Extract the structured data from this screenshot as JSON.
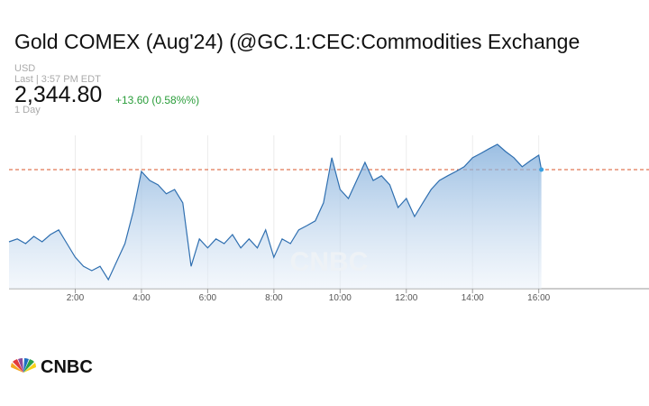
{
  "title": "Gold COMEX (Aug'24) (@GC.1:CEC:Commodities Exchange",
  "currency": "USD",
  "last_time": "Last | 3:57 PM EDT",
  "last": {
    "value": 2344.8,
    "label": "2,344.80"
  },
  "change": "+13.60 (0.58%%)",
  "range": "1 Day",
  "logo": "CNBC",
  "chart_data": {
    "type": "area",
    "color": "#2f6fb0",
    "x": [
      0,
      0.25,
      0.5,
      0.75,
      1,
      1.25,
      1.5,
      1.75,
      2,
      2.25,
      2.5,
      2.75,
      3,
      3.25,
      3.5,
      3.75,
      4,
      4.25,
      4.5,
      4.75,
      5,
      5.25,
      5.5,
      5.75,
      6,
      6.25,
      6.5,
      6.75,
      7,
      7.25,
      7.5,
      7.75,
      8,
      8.25,
      8.5,
      8.75,
      9,
      9.25,
      9.5,
      9.75,
      10,
      10.25,
      10.5,
      10.75,
      11,
      11.25,
      11.5,
      11.75,
      12,
      12.25,
      12.5,
      12.75,
      13,
      13.25,
      13.5,
      13.75,
      14,
      14.25,
      14.5,
      14.75,
      15,
      15.25,
      15.5,
      15.75,
      16,
      16.08
    ],
    "values": [
      2324.8,
      2325.6,
      2324.3,
      2326.3,
      2324.8,
      2326.8,
      2328.1,
      2324.3,
      2320.5,
      2318.0,
      2316.8,
      2318.0,
      2314.3,
      2319.3,
      2324.3,
      2333.1,
      2344.3,
      2341.8,
      2340.6,
      2338.1,
      2339.3,
      2335.6,
      2318.0,
      2325.6,
      2323.1,
      2325.6,
      2324.3,
      2326.8,
      2323.1,
      2325.6,
      2323.1,
      2328.1,
      2320.5,
      2325.6,
      2324.3,
      2328.1,
      2329.3,
      2330.6,
      2335.6,
      2348.1,
      2339.3,
      2336.8,
      2341.8,
      2346.8,
      2341.8,
      2343.1,
      2340.6,
      2334.3,
      2336.8,
      2331.8,
      2335.6,
      2339.3,
      2341.8,
      2343.1,
      2344.3,
      2345.6,
      2348.1,
      2349.3,
      2350.6,
      2351.8,
      2349.8,
      2348.1,
      2345.6,
      2347.3,
      2348.8,
      2344.8
    ],
    "xlim": [
      0,
      19.33
    ],
    "ylim": [
      2311.8,
      2354.3
    ],
    "xticks": [
      {
        "value": 2,
        "label": "2:00"
      },
      {
        "value": 4,
        "label": "4:00"
      },
      {
        "value": 6,
        "label": "6:00"
      },
      {
        "value": 8,
        "label": "8:00"
      },
      {
        "value": 10,
        "label": "10:00"
      },
      {
        "value": 12,
        "label": "12:00"
      },
      {
        "value": 14,
        "label": "14:00"
      },
      {
        "value": 16,
        "label": "16:00"
      }
    ],
    "grid": true
  }
}
